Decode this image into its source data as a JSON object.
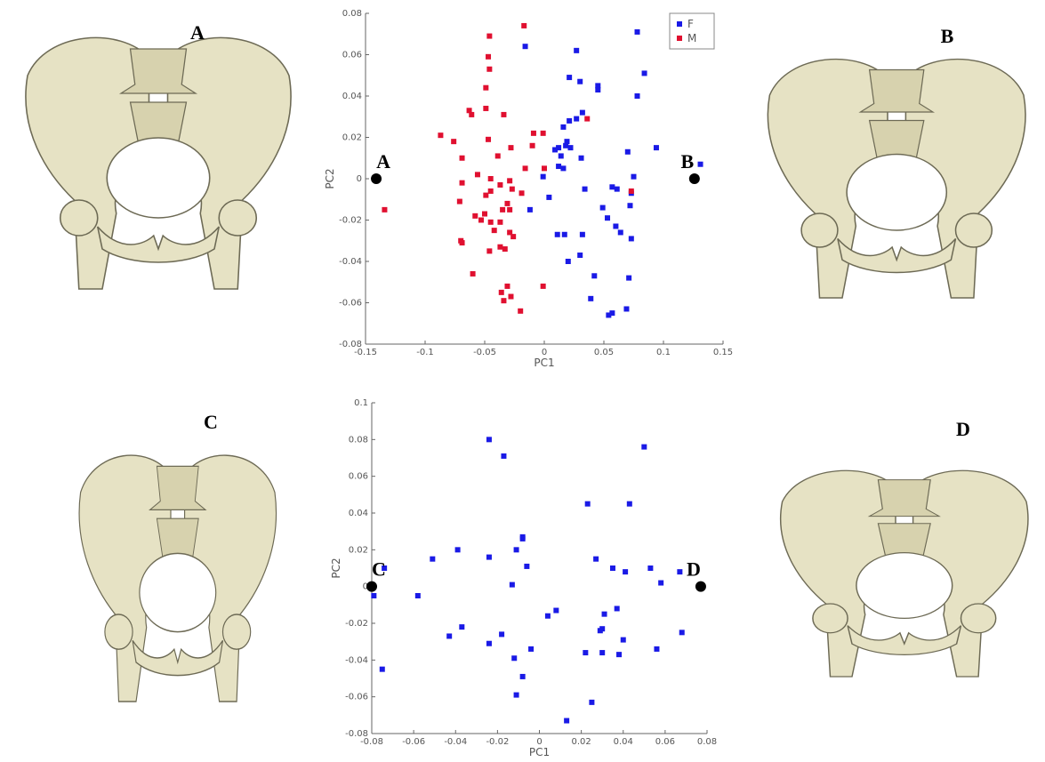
{
  "images": [
    {
      "label": "A"
    },
    {
      "label": "B"
    },
    {
      "label": "C"
    },
    {
      "label": "D"
    }
  ],
  "chart_data": [
    {
      "type": "scatter",
      "x_label": "PC1",
      "y_label": "PC2",
      "xlim": [
        -0.15,
        0.15
      ],
      "xticks": [
        -0.15,
        -0.1,
        -0.05,
        0,
        0.05,
        0.1,
        0.15
      ],
      "ylim": [
        -0.08,
        0.08
      ],
      "yticks": [
        -0.08,
        -0.06,
        -0.04,
        -0.02,
        0,
        0.02,
        0.04,
        0.06,
        0.08
      ],
      "legend": "upper right",
      "series": [
        {
          "name": "F",
          "color": "#1a1ae6",
          "x": [
            0.078,
            -0.016,
            0.027,
            0.084,
            0.021,
            0.03,
            0.078,
            0.045,
            0.045,
            0.032,
            0.027,
            0.021,
            0.016,
            0.019,
            0.018,
            0.012,
            0.022,
            0.009,
            0.094,
            0.07,
            0.031,
            0.014,
            0.012,
            0.016,
            0.075,
            0.131,
            -0.001,
            0.057,
            0.061,
            0.034,
            0.073,
            0.072,
            0.004,
            -0.012,
            0.049,
            0.053,
            0.06,
            0.064,
            0.073,
            0.032,
            0.011,
            0.017,
            0.03,
            0.02,
            0.042,
            0.071,
            0.069,
            0.039,
            0.057,
            0.054
          ],
          "values": [
            0.071,
            0.064,
            0.062,
            0.051,
            0.049,
            0.047,
            0.04,
            0.045,
            0.043,
            0.032,
            0.029,
            0.028,
            0.025,
            0.018,
            0.016,
            0.015,
            0.015,
            0.014,
            0.015,
            0.013,
            0.01,
            0.011,
            0.006,
            0.005,
            0.001,
            0.007,
            0.001,
            -0.004,
            -0.005,
            -0.005,
            -0.007,
            -0.013,
            -0.009,
            -0.015,
            -0.014,
            -0.019,
            -0.023,
            -0.026,
            -0.029,
            -0.027,
            -0.027,
            -0.027,
            -0.037,
            -0.04,
            -0.047,
            -0.048,
            -0.063,
            -0.058,
            -0.065,
            -0.066
          ]
        },
        {
          "name": "M",
          "color": "#e01030",
          "x": [
            -0.017,
            -0.046,
            -0.047,
            -0.046,
            -0.049,
            -0.063,
            -0.061,
            -0.049,
            -0.034,
            0.036,
            -0.087,
            -0.076,
            -0.047,
            -0.009,
            -0.001,
            -0.01,
            -0.028,
            -0.069,
            -0.039,
            -0.016,
            0,
            -0.056,
            -0.045,
            -0.069,
            -0.029,
            -0.037,
            -0.027,
            -0.045,
            -0.049,
            -0.019,
            -0.071,
            -0.031,
            -0.035,
            -0.029,
            -0.05,
            -0.134,
            -0.058,
            -0.053,
            -0.045,
            -0.037,
            -0.042,
            -0.029,
            -0.026,
            -0.07,
            -0.069,
            -0.037,
            -0.033,
            -0.046,
            0.073,
            -0.06,
            -0.031,
            -0.001,
            -0.036,
            -0.028,
            -0.034,
            -0.02
          ],
          "values": [
            0.074,
            0.069,
            0.059,
            0.053,
            0.044,
            0.033,
            0.031,
            0.034,
            0.031,
            0.029,
            0.021,
            0.018,
            0.019,
            0.022,
            0.022,
            0.016,
            0.015,
            0.01,
            0.011,
            0.005,
            0.005,
            0.002,
            0,
            -0.002,
            -0.001,
            -0.003,
            -0.005,
            -0.006,
            -0.008,
            -0.007,
            -0.011,
            -0.012,
            -0.015,
            -0.015,
            -0.017,
            -0.015,
            -0.018,
            -0.02,
            -0.021,
            -0.021,
            -0.025,
            -0.026,
            -0.028,
            -0.03,
            -0.031,
            -0.033,
            -0.034,
            -0.035,
            -0.006,
            -0.046,
            -0.052,
            -0.052,
            -0.055,
            -0.057,
            -0.059,
            -0.064
          ]
        }
      ],
      "annotations": [
        {
          "text": "A",
          "x": -0.141,
          "y": 0
        },
        {
          "text": "B",
          "x": 0.126,
          "y": 0
        }
      ]
    },
    {
      "type": "scatter",
      "x_label": "PC1",
      "y_label": "PC2",
      "xlim": [
        -0.08,
        0.08
      ],
      "xticks": [
        -0.08,
        -0.06,
        -0.04,
        -0.02,
        0,
        0.02,
        0.04,
        0.06,
        0.08
      ],
      "ylim": [
        -0.08,
        0.1
      ],
      "yticks": [
        -0.08,
        -0.06,
        -0.04,
        -0.02,
        0,
        0.02,
        0.04,
        0.06,
        0.08,
        0.1
      ],
      "series": [
        {
          "color": "#1a1ae6",
          "x": [
            -0.024,
            -0.017,
            0.05,
            0.023,
            0.043,
            -0.008,
            -0.008,
            -0.039,
            -0.051,
            -0.024,
            -0.011,
            -0.006,
            0.027,
            0.035,
            0.041,
            0.053,
            0.067,
            0.058,
            -0.013,
            -0.058,
            -0.079,
            -0.074,
            0.008,
            0.004,
            0.037,
            0.031,
            0.03,
            0.029,
            0.04,
            0.056,
            0.068,
            -0.037,
            -0.043,
            -0.018,
            -0.024,
            -0.004,
            0.022,
            0.03,
            0.038,
            -0.012,
            -0.008,
            -0.011,
            0.025,
            0.013,
            -0.075
          ],
          "values": [
            0.08,
            0.071,
            0.076,
            0.045,
            0.045,
            0.027,
            0.026,
            0.02,
            0.015,
            0.016,
            0.02,
            0.011,
            0.015,
            0.01,
            0.008,
            0.01,
            0.008,
            0.002,
            0.001,
            -0.005,
            -0.005,
            0.01,
            -0.013,
            -0.016,
            -0.012,
            -0.015,
            -0.023,
            -0.024,
            -0.029,
            -0.034,
            -0.025,
            -0.022,
            -0.027,
            -0.026,
            -0.031,
            -0.034,
            -0.036,
            -0.036,
            -0.037,
            -0.039,
            -0.049,
            -0.059,
            -0.063,
            -0.073,
            -0.045
          ]
        }
      ],
      "annotations": [
        {
          "text": "C",
          "x": -0.08,
          "y": 0
        },
        {
          "text": "D",
          "x": 0.077,
          "y": 0
        }
      ]
    }
  ]
}
